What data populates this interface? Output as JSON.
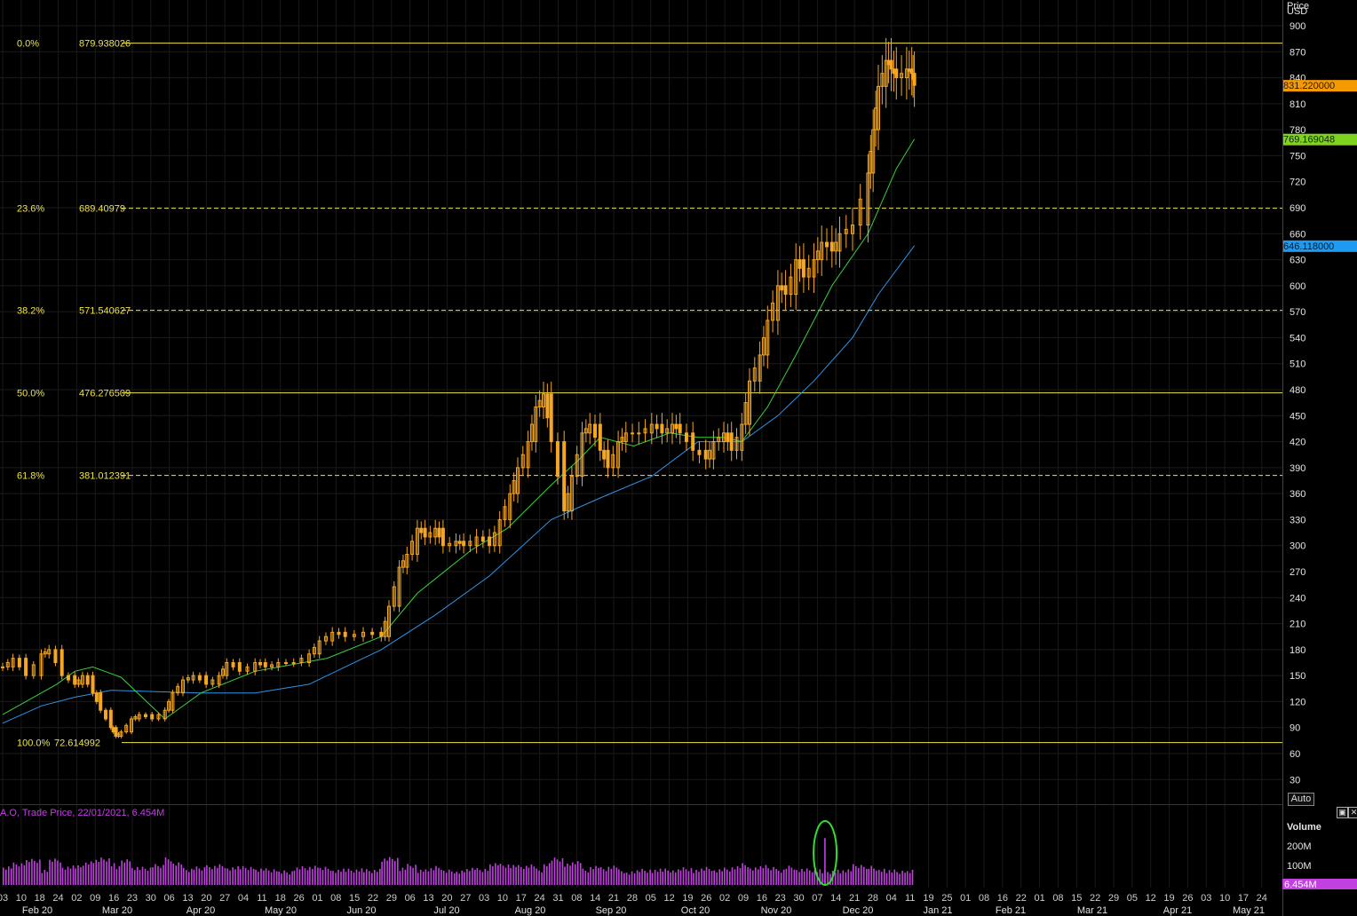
{
  "header": {
    "unit_top": "Price",
    "currency": "USD"
  },
  "auto_label": "Auto",
  "controls": {
    "restore_glyph": "▣",
    "close_glyph": "✕"
  },
  "colors": {
    "background": "#000000",
    "candle": "#f5a623",
    "sma_fast": "#3ccf3c",
    "sma_slow": "#2f93e6",
    "fib_line": "#f0e442",
    "volume": "#c040e0",
    "volume_highlight": "#33dd33"
  },
  "price_tags": [
    {
      "value": "831.220000",
      "color": "#f59b00"
    },
    {
      "value": "769.169048",
      "color": "#7ed321"
    },
    {
      "value": "646.118000",
      "color": "#1e9bf0"
    }
  ],
  "volume_panel": {
    "series_label": "A.O, Trade Price, 22/01/2021, 6.454M",
    "title": "Volume",
    "ticks": [
      "200M",
      "100M"
    ],
    "last_tag": "6.454M"
  },
  "chart_data": {
    "type": "candlestick",
    "ylabel": "USD",
    "ylim": [
      0,
      920
    ],
    "yticks": [
      30,
      60,
      90,
      120,
      150,
      180,
      210,
      240,
      270,
      300,
      330,
      360,
      390,
      420,
      450,
      480,
      510,
      540,
      570,
      600,
      630,
      660,
      690,
      720,
      750,
      780,
      810,
      840,
      870,
      900
    ],
    "x_day_ticks": [
      "03",
      "10",
      "18",
      "24",
      "02",
      "09",
      "16",
      "23",
      "30",
      "06",
      "13",
      "20",
      "27",
      "04",
      "11",
      "18",
      "26",
      "01",
      "08",
      "15",
      "22",
      "29",
      "06",
      "13",
      "20",
      "27",
      "03",
      "10",
      "17",
      "24",
      "31",
      "08",
      "14",
      "21",
      "28",
      "05",
      "12",
      "19",
      "26",
      "02",
      "09",
      "16",
      "23",
      "30",
      "07",
      "14",
      "21",
      "28",
      "04",
      "11",
      "19",
      "25",
      "01",
      "08",
      "16",
      "22",
      "01",
      "08",
      "15",
      "22",
      "29",
      "05",
      "12",
      "19",
      "26",
      "03",
      "10",
      "17",
      "24"
    ],
    "x_month_ticks": [
      "Feb 20",
      "Mar 20",
      "Apr 20",
      "May 20",
      "Jun 20",
      "Jul 20",
      "Aug 20",
      "Sep 20",
      "Oct 20",
      "Nov 20",
      "Dec 20",
      "Jan 21",
      "Feb 21",
      "Mar 21",
      "Apr 21",
      "May 21"
    ],
    "fibonacci": [
      {
        "pct": "0.0%",
        "price": 879.938026,
        "label": "879.938026",
        "style": "solid"
      },
      {
        "pct": "23.6%",
        "price": 689.40979,
        "label": "689.40979",
        "style": "dashed"
      },
      {
        "pct": "38.2%",
        "price": 571.540627,
        "label": "571.540627",
        "style": "dashed"
      },
      {
        "pct": "50.0%",
        "price": 476.276509,
        "label": "476.276509",
        "style": "solid"
      },
      {
        "pct": "61.8%",
        "price": 381.012391,
        "label": "381.012391",
        "style": "dashed"
      },
      {
        "pct": "100.0%",
        "price": 72.614992,
        "label": "72.614992",
        "style": "solid"
      }
    ],
    "close_series": [
      [
        "2020-02-03",
        160
      ],
      [
        "2020-02-07",
        170
      ],
      [
        "2020-02-12",
        150
      ],
      [
        "2020-02-18",
        175
      ],
      [
        "2020-02-21",
        180
      ],
      [
        "2020-02-26",
        150
      ],
      [
        "2020-03-02",
        140
      ],
      [
        "2020-03-05",
        150
      ],
      [
        "2020-03-09",
        130
      ],
      [
        "2020-03-12",
        110
      ],
      [
        "2020-03-16",
        90
      ],
      [
        "2020-03-18",
        80
      ],
      [
        "2020-03-20",
        85
      ],
      [
        "2020-03-24",
        100
      ],
      [
        "2020-03-27",
        105
      ],
      [
        "2020-04-01",
        100
      ],
      [
        "2020-04-06",
        110
      ],
      [
        "2020-04-09",
        130
      ],
      [
        "2020-04-13",
        145
      ],
      [
        "2020-04-17",
        150
      ],
      [
        "2020-04-22",
        140
      ],
      [
        "2020-04-27",
        150
      ],
      [
        "2020-04-30",
        165
      ],
      [
        "2020-05-05",
        155
      ],
      [
        "2020-05-11",
        165
      ],
      [
        "2020-05-15",
        160
      ],
      [
        "2020-05-20",
        165
      ],
      [
        "2020-05-26",
        165
      ],
      [
        "2020-06-01",
        175
      ],
      [
        "2020-06-05",
        190
      ],
      [
        "2020-06-10",
        200
      ],
      [
        "2020-06-15",
        195
      ],
      [
        "2020-06-22",
        200
      ],
      [
        "2020-06-29",
        195
      ],
      [
        "2020-07-02",
        230
      ],
      [
        "2020-07-06",
        275
      ],
      [
        "2020-07-09",
        290
      ],
      [
        "2020-07-13",
        320
      ],
      [
        "2020-07-16",
        310
      ],
      [
        "2020-07-20",
        320
      ],
      [
        "2020-07-23",
        300
      ],
      [
        "2020-07-28",
        305
      ],
      [
        "2020-07-31",
        300
      ],
      [
        "2020-08-05",
        310
      ],
      [
        "2020-08-10",
        300
      ],
      [
        "2020-08-14",
        330
      ],
      [
        "2020-08-18",
        360
      ],
      [
        "2020-08-21",
        390
      ],
      [
        "2020-08-25",
        420
      ],
      [
        "2020-08-28",
        460
      ],
      [
        "2020-08-31",
        475
      ],
      [
        "2020-09-03",
        420
      ],
      [
        "2020-09-08",
        340
      ],
      [
        "2020-09-11",
        380
      ],
      [
        "2020-09-15",
        430
      ],
      [
        "2020-09-18",
        440
      ],
      [
        "2020-09-22",
        410
      ],
      [
        "2020-09-25",
        390
      ],
      [
        "2020-09-29",
        420
      ],
      [
        "2020-10-02",
        430
      ],
      [
        "2020-10-07",
        430
      ],
      [
        "2020-10-12",
        440
      ],
      [
        "2020-10-16",
        430
      ],
      [
        "2020-10-20",
        440
      ],
      [
        "2020-10-23",
        430
      ],
      [
        "2020-10-28",
        410
      ],
      [
        "2020-11-02",
        400
      ],
      [
        "2020-11-05",
        420
      ],
      [
        "2020-11-09",
        430
      ],
      [
        "2020-11-12",
        410
      ],
      [
        "2020-11-16",
        440
      ],
      [
        "2020-11-19",
        490
      ],
      [
        "2020-11-23",
        520
      ],
      [
        "2020-11-26",
        560
      ],
      [
        "2020-11-30",
        600
      ],
      [
        "2020-12-03",
        590
      ],
      [
        "2020-12-07",
        630
      ],
      [
        "2020-12-10",
        610
      ],
      [
        "2020-12-14",
        630
      ],
      [
        "2020-12-17",
        650
      ],
      [
        "2020-12-21",
        640
      ],
      [
        "2020-12-24",
        660
      ],
      [
        "2020-12-29",
        670
      ],
      [
        "2021-01-04",
        730
      ],
      [
        "2021-01-06",
        780
      ],
      [
        "2021-01-08",
        830
      ],
      [
        "2021-01-11",
        860
      ],
      [
        "2021-01-13",
        850
      ],
      [
        "2021-01-15",
        840
      ],
      [
        "2021-01-19",
        850
      ],
      [
        "2021-01-21",
        845
      ],
      [
        "2021-01-22",
        831.22
      ]
    ],
    "sma_fast": [
      [
        "2020-02-03",
        105
      ],
      [
        "2020-02-24",
        140
      ],
      [
        "2020-03-02",
        155
      ],
      [
        "2020-03-09",
        160
      ],
      [
        "2020-03-20",
        148
      ],
      [
        "2020-04-06",
        100
      ],
      [
        "2020-04-20",
        130
      ],
      [
        "2020-05-11",
        155
      ],
      [
        "2020-06-08",
        170
      ],
      [
        "2020-06-29",
        195
      ],
      [
        "2020-07-13",
        245
      ],
      [
        "2020-08-03",
        295
      ],
      [
        "2020-08-17",
        320
      ],
      [
        "2020-09-03",
        370
      ],
      [
        "2020-09-14",
        400
      ],
      [
        "2020-09-22",
        425
      ],
      [
        "2020-10-05",
        415
      ],
      [
        "2020-10-19",
        430
      ],
      [
        "2020-10-30",
        425
      ],
      [
        "2020-11-09",
        425
      ],
      [
        "2020-11-16",
        420
      ],
      [
        "2020-11-26",
        460
      ],
      [
        "2020-12-07",
        520
      ],
      [
        "2020-12-21",
        600
      ],
      [
        "2021-01-04",
        660
      ],
      [
        "2021-01-15",
        735
      ],
      [
        "2021-01-22",
        769.17
      ]
    ],
    "sma_slow": [
      [
        "2020-02-03",
        95
      ],
      [
        "2020-02-18",
        115
      ],
      [
        "2020-03-02",
        125
      ],
      [
        "2020-03-16",
        133
      ],
      [
        "2020-04-20",
        130
      ],
      [
        "2020-05-11",
        130
      ],
      [
        "2020-06-01",
        140
      ],
      [
        "2020-06-29",
        180
      ],
      [
        "2020-07-20",
        220
      ],
      [
        "2020-08-10",
        265
      ],
      [
        "2020-09-03",
        330
      ],
      [
        "2020-09-22",
        355
      ],
      [
        "2020-10-12",
        380
      ],
      [
        "2020-10-30",
        420
      ],
      [
        "2020-11-16",
        420
      ],
      [
        "2020-11-30",
        450
      ],
      [
        "2020-12-14",
        490
      ],
      [
        "2020-12-29",
        540
      ],
      [
        "2021-01-08",
        590
      ],
      [
        "2021-01-22",
        646.12
      ]
    ],
    "volume_highlight_date": "2020-12-18",
    "volume_ylim": [
      0,
      300
    ]
  }
}
